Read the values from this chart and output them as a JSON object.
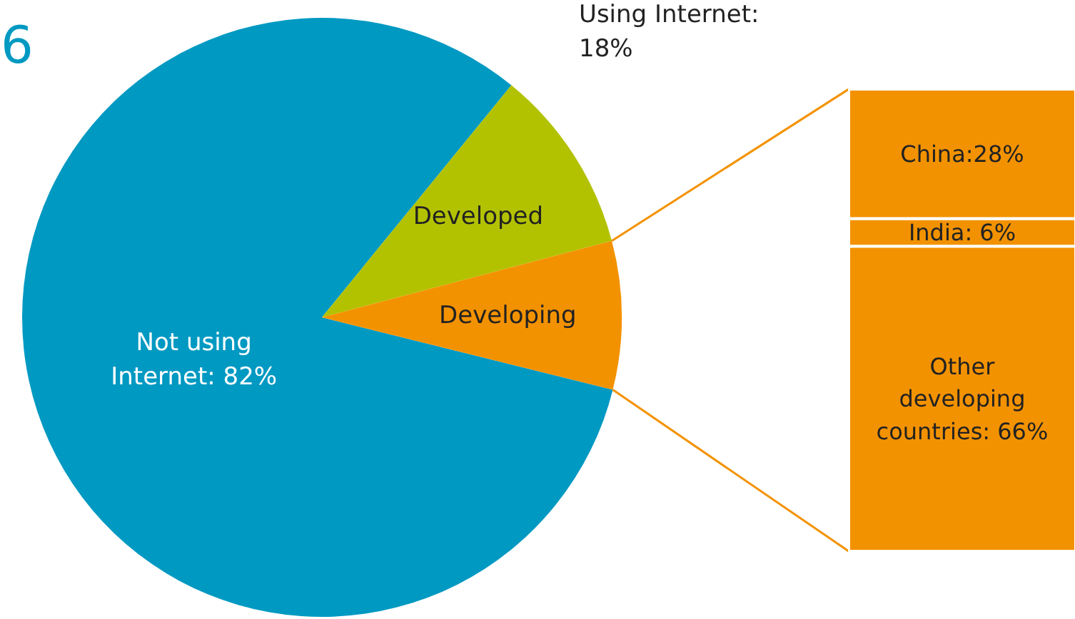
{
  "chart_data": [
    {
      "type": "pie",
      "categories": [
        "Not using Internet: 82%",
        "Developed",
        "Developing"
      ],
      "values": [
        82,
        10,
        8
      ],
      "colors": [
        "#0099c2",
        "#b3c200",
        "#f39200"
      ],
      "annotations": [
        "6",
        "Using Internet: 18%"
      ]
    },
    {
      "type": "bar",
      "stacked": true,
      "categories": [
        null
      ],
      "series": [
        {
          "color": "#f39200",
          "values": [
            66
          ],
          "value_labels": [
            "Other developing countries: 66%"
          ]
        },
        {
          "color": "#f39200",
          "values": [
            6
          ],
          "value_labels": [
            "India: 6%"
          ]
        },
        {
          "color": "#f39200",
          "values": [
            28
          ],
          "value_labels": [
            "China:28%"
          ]
        }
      ]
    }
  ]
}
